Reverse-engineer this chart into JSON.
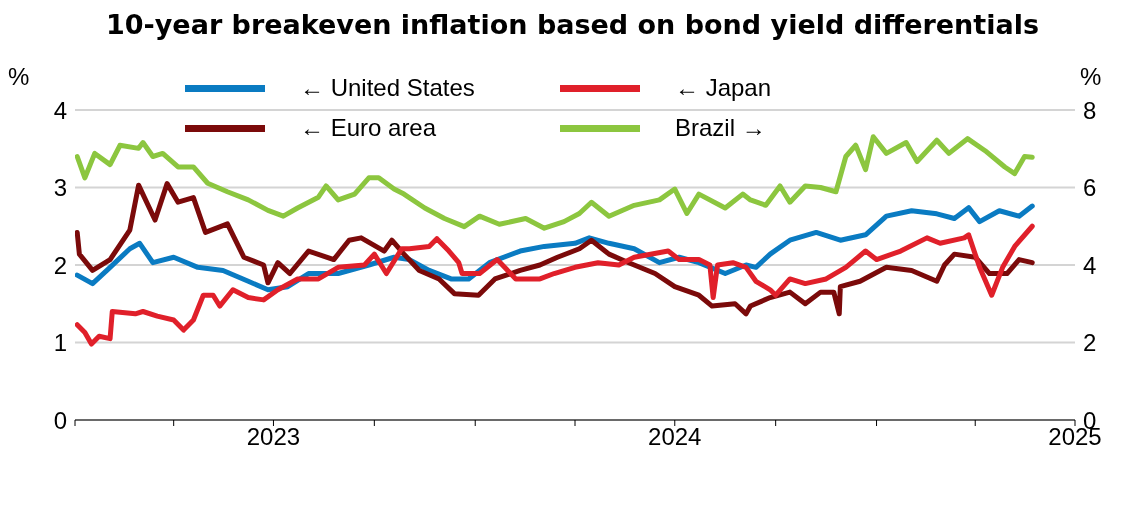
{
  "chart_data": {
    "type": "line",
    "title": "10-year breakeven inflation based on bond yield differentials",
    "ylabel": "%",
    "y2label": "%",
    "xlim": [
      "2023-01",
      "2025-07"
    ],
    "xticks": [
      {
        "value": "2023-01",
        "label": null
      },
      {
        "value": "2023-04",
        "label": null
      },
      {
        "value": "2023-07",
        "label": "2023"
      },
      {
        "value": "2023-10",
        "label": null
      },
      {
        "value": "2024-01",
        "label": null
      },
      {
        "value": "2024-04",
        "label": null
      },
      {
        "value": "2024-07",
        "label": "2024"
      },
      {
        "value": "2024-10",
        "label": null
      },
      {
        "value": "2025-01",
        "label": null
      },
      {
        "value": "2025-04",
        "label": null
      },
      {
        "value": "2025-07",
        "label": "2025"
      }
    ],
    "ylim": [
      0,
      4
    ],
    "yticks": [
      0,
      1,
      2,
      3,
      4
    ],
    "y2lim": [
      0,
      8
    ],
    "y2ticks": [
      0,
      2,
      4,
      6,
      8
    ],
    "grid": "y",
    "legend": "top",
    "marker": "none",
    "line_style": "solid",
    "series": [
      {
        "name": "← United States",
        "color": "#0a7bc2",
        "x": [
          "2023-01-03",
          "2023-01-17",
          "2023-02-02",
          "2023-02-20",
          "2023-03-01",
          "2023-03-13",
          "2023-04-01",
          "2023-04-23",
          "2023-05-16",
          "2023-06-08",
          "2023-06-26",
          "2023-07-14",
          "2023-08-02",
          "2023-08-29",
          "2023-09-26",
          "2023-10-19",
          "2023-11-02",
          "2023-11-20",
          "2023-12-10",
          "2023-12-26",
          "2024-01-14",
          "2024-02-11",
          "2024-03-04",
          "2024-04-01",
          "2024-04-14",
          "2024-05-02",
          "2024-05-25",
          "2024-06-17",
          "2024-07-05",
          "2024-07-23",
          "2024-08-16",
          "2024-09-04",
          "2024-09-13",
          "2024-09-26",
          "2024-10-14",
          "2024-11-07",
          "2024-11-29",
          "2024-12-22",
          "2025-01-10",
          "2025-02-02",
          "2025-02-25",
          "2025-03-13",
          "2025-03-26",
          "2025-04-05",
          "2025-04-23",
          "2025-05-11",
          "2025-05-23"
        ],
        "values": [
          1.87,
          1.76,
          1.97,
          2.21,
          2.28,
          2.03,
          2.1,
          1.97,
          1.93,
          1.79,
          1.68,
          1.72,
          1.89,
          1.89,
          2.0,
          2.1,
          2.07,
          1.93,
          1.82,
          1.82,
          2.03,
          2.18,
          2.24,
          2.28,
          2.35,
          2.28,
          2.21,
          2.03,
          2.1,
          2.03,
          1.89,
          2.0,
          1.97,
          2.14,
          2.32,
          2.42,
          2.32,
          2.39,
          2.63,
          2.7,
          2.66,
          2.6,
          2.74,
          2.56,
          2.7,
          2.63,
          2.76
        ]
      },
      {
        "name": "← Japan",
        "color": "#e0202a",
        "x": [
          "2023-01-03",
          "2023-01-10",
          "2023-01-16",
          "2023-01-23",
          "2023-02-02",
          "2023-02-04",
          "2023-02-25",
          "2023-03-04",
          "2023-03-17",
          "2023-04-01",
          "2023-04-10",
          "2023-04-19",
          "2023-04-28",
          "2023-05-07",
          "2023-05-13",
          "2023-05-25",
          "2023-06-08",
          "2023-06-22",
          "2023-07-05",
          "2023-07-23",
          "2023-08-11",
          "2023-08-29",
          "2023-09-22",
          "2023-10-01",
          "2023-10-12",
          "2023-10-26",
          "2023-11-02",
          "2023-11-20",
          "2023-11-27",
          "2023-12-08",
          "2023-12-17",
          "2023-12-20",
          "2024-01-05",
          "2024-01-21",
          "2024-02-07",
          "2024-02-29",
          "2024-03-13",
          "2024-04-01",
          "2024-04-22",
          "2024-05-11",
          "2024-05-25",
          "2024-06-25",
          "2024-07-05",
          "2024-07-23",
          "2024-08-02",
          "2024-08-05",
          "2024-08-09",
          "2024-08-23",
          "2024-09-04",
          "2024-09-13",
          "2024-09-26",
          "2024-10-01",
          "2024-10-14",
          "2024-10-28",
          "2024-11-16",
          "2024-12-04",
          "2024-12-22",
          "2025-01-01",
          "2025-01-23",
          "2025-02-16",
          "2025-02-28",
          "2025-03-22",
          "2025-03-26",
          "2025-04-05",
          "2025-04-16",
          "2025-04-26",
          "2025-05-07",
          "2025-05-23"
        ],
        "values": [
          1.23,
          1.13,
          0.98,
          1.08,
          1.05,
          1.4,
          1.37,
          1.4,
          1.34,
          1.29,
          1.16,
          1.29,
          1.61,
          1.61,
          1.47,
          1.68,
          1.58,
          1.55,
          1.68,
          1.82,
          1.82,
          1.97,
          2.0,
          2.14,
          1.89,
          2.21,
          2.21,
          2.24,
          2.34,
          2.18,
          2.03,
          1.89,
          1.89,
          2.07,
          1.82,
          1.82,
          1.89,
          1.97,
          2.03,
          2.0,
          2.1,
          2.18,
          2.07,
          2.07,
          2.0,
          1.58,
          2.0,
          2.03,
          1.97,
          1.79,
          1.68,
          1.61,
          1.82,
          1.76,
          1.82,
          1.97,
          2.18,
          2.07,
          2.18,
          2.35,
          2.28,
          2.35,
          2.39,
          1.97,
          1.61,
          1.97,
          2.24,
          2.5
        ]
      },
      {
        "name": "← Euro area",
        "color": "#7b0a0a",
        "x": [
          "2023-01-03",
          "2023-01-05",
          "2023-01-17",
          "2023-02-02",
          "2023-02-20",
          "2023-02-28",
          "2023-03-15",
          "2023-03-26",
          "2023-04-05",
          "2023-04-19",
          "2023-04-30",
          "2023-05-20",
          "2023-06-04",
          "2023-06-22",
          "2023-06-26",
          "2023-07-05",
          "2023-07-16",
          "2023-08-02",
          "2023-08-25",
          "2023-09-08",
          "2023-09-19",
          "2023-10-10",
          "2023-10-17",
          "2023-10-28",
          "2023-11-11",
          "2023-11-29",
          "2023-12-13",
          "2024-01-04",
          "2024-01-19",
          "2024-02-11",
          "2024-02-29",
          "2024-03-16",
          "2024-04-05",
          "2024-04-16",
          "2024-05-02",
          "2024-05-20",
          "2024-06-13",
          "2024-07-01",
          "2024-07-23",
          "2024-08-04",
          "2024-08-25",
          "2024-09-04",
          "2024-09-08",
          "2024-09-26",
          "2024-10-14",
          "2024-10-28",
          "2024-11-11",
          "2024-11-23",
          "2024-11-28",
          "2024-11-29",
          "2024-12-17",
          "2025-01-10",
          "2025-02-02",
          "2025-02-25",
          "2025-03-04",
          "2025-03-13",
          "2025-04-01",
          "2025-04-14",
          "2025-04-30",
          "2025-05-11",
          "2025-05-23"
        ],
        "values": [
          2.42,
          2.14,
          1.93,
          2.07,
          2.45,
          3.03,
          2.58,
          3.05,
          2.81,
          2.87,
          2.42,
          2.53,
          2.1,
          2.0,
          1.77,
          2.03,
          1.89,
          2.18,
          2.07,
          2.32,
          2.35,
          2.18,
          2.32,
          2.14,
          1.93,
          1.82,
          1.63,
          1.61,
          1.82,
          1.93,
          2.0,
          2.1,
          2.21,
          2.32,
          2.14,
          2.03,
          1.89,
          1.72,
          1.61,
          1.47,
          1.5,
          1.37,
          1.47,
          1.58,
          1.65,
          1.5,
          1.65,
          1.65,
          1.37,
          1.72,
          1.79,
          1.97,
          1.93,
          1.79,
          2.0,
          2.14,
          2.1,
          1.89,
          1.89,
          2.07,
          2.03
        ]
      },
      {
        "name": "Brazil →",
        "color": "#8cc63f",
        "axis": "y2",
        "x": [
          "2023-01-03",
          "2023-01-10",
          "2023-01-19",
          "2023-02-02",
          "2023-02-11",
          "2023-02-28",
          "2023-03-04",
          "2023-03-13",
          "2023-03-22",
          "2023-04-05",
          "2023-04-19",
          "2023-05-02",
          "2023-05-20",
          "2023-06-08",
          "2023-06-26",
          "2023-07-10",
          "2023-07-23",
          "2023-08-11",
          "2023-08-18",
          "2023-08-29",
          "2023-09-13",
          "2023-09-26",
          "2023-10-05",
          "2023-10-19",
          "2023-10-28",
          "2023-11-16",
          "2023-12-04",
          "2023-12-22",
          "2024-01-05",
          "2024-01-23",
          "2024-02-16",
          "2024-03-04",
          "2024-03-22",
          "2024-04-05",
          "2024-04-16",
          "2024-05-02",
          "2024-05-25",
          "2024-06-17",
          "2024-07-01",
          "2024-07-12",
          "2024-07-23",
          "2024-08-16",
          "2024-09-01",
          "2024-09-08",
          "2024-09-22",
          "2024-10-05",
          "2024-10-14",
          "2024-10-28",
          "2024-11-11",
          "2024-11-25",
          "2024-12-04",
          "2024-12-13",
          "2024-12-22",
          "2024-12-29",
          "2025-01-10",
          "2025-01-28",
          "2025-02-07",
          "2025-02-25",
          "2025-03-08",
          "2025-03-25",
          "2025-04-10",
          "2025-04-28",
          "2025-05-07",
          "2025-05-16",
          "2025-05-23"
        ],
        "values": [
          6.8,
          6.25,
          6.88,
          6.59,
          7.09,
          7.01,
          7.16,
          6.8,
          6.88,
          6.53,
          6.53,
          6.11,
          5.89,
          5.68,
          5.41,
          5.26,
          5.47,
          5.75,
          6.04,
          5.68,
          5.83,
          6.25,
          6.25,
          5.96,
          5.83,
          5.47,
          5.2,
          4.99,
          5.26,
          5.05,
          5.2,
          4.95,
          5.12,
          5.33,
          5.62,
          5.26,
          5.54,
          5.68,
          5.96,
          5.33,
          5.83,
          5.47,
          5.83,
          5.68,
          5.54,
          6.04,
          5.62,
          6.04,
          6.0,
          5.89,
          6.8,
          7.09,
          6.46,
          7.31,
          6.88,
          7.16,
          6.67,
          7.22,
          6.88,
          7.26,
          6.95,
          6.53,
          6.36,
          6.8,
          6.78
        ]
      }
    ]
  }
}
